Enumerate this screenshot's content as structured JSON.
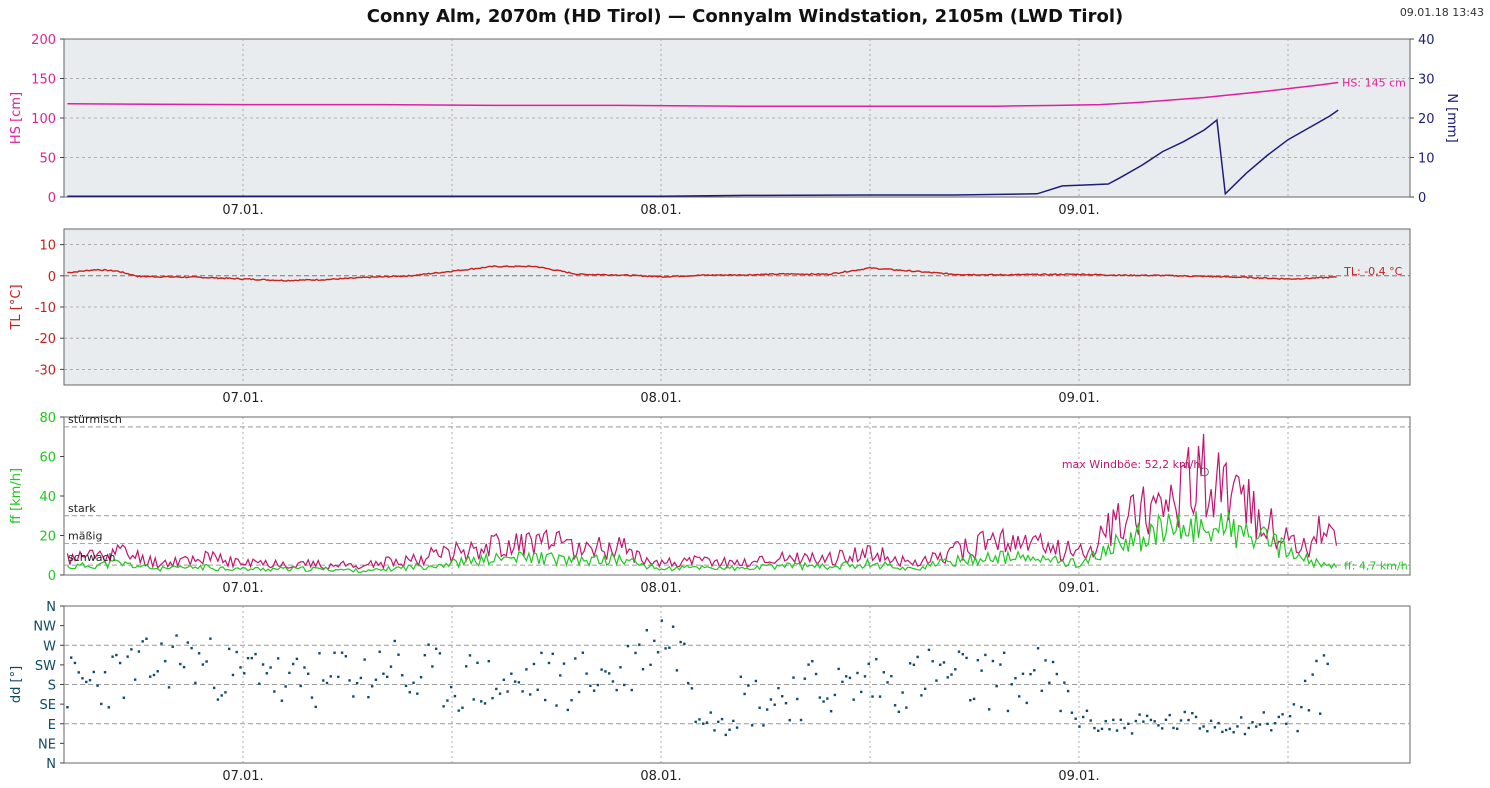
{
  "header": {
    "title": "Conny Alm, 2070m (HD Tirol) — Connyalm Windstation, 2105m (LWD Tirol)",
    "timestamp": "09.01.18 13:43"
  },
  "colors": {
    "hs": "#e0209a",
    "n": "#1e1e7a",
    "tl": "#c8201e",
    "ff": "#1ec81e",
    "gust": "#c01670",
    "dd": "#0e4a6a",
    "panel_bg": "#e9ecef",
    "grid": "#9a9a9a"
  },
  "chart_data": [
    {
      "type": "line",
      "name": "snow-depth-precip",
      "x_tick_labels": [
        "07.01.",
        "08.01.",
        "09.01."
      ],
      "ylabel": "HS [cm]",
      "ylim": [
        0,
        200
      ],
      "yticks": [
        0,
        50,
        100,
        150,
        200
      ],
      "ylabel_right": "N [mm]",
      "ylim_right": [
        0,
        40
      ],
      "yticks_right": [
        0,
        10,
        20,
        30,
        40
      ],
      "x_range_days": [
        -0.425,
        2.8
      ],
      "series": [
        {
          "name": "HS",
          "axis": "left",
          "x": [
            -0.42,
            0.0,
            0.3,
            0.6,
            0.9,
            1.2,
            1.5,
            1.65,
            1.8,
            1.95,
            2.05,
            2.15,
            2.3,
            2.45,
            2.58,
            2.62
          ],
          "values": [
            118,
            117,
            117,
            116,
            116,
            115,
            115,
            115,
            115,
            116,
            117,
            120,
            126,
            134,
            142,
            145
          ],
          "label": "HS: 145 cm"
        },
        {
          "name": "N",
          "axis": "right",
          "x": [
            -0.42,
            0.0,
            0.5,
            1.0,
            1.2,
            1.5,
            1.7,
            1.9,
            1.96,
            2.0,
            2.07,
            2.1,
            2.15,
            2.2,
            2.25,
            2.3,
            2.33,
            2.35,
            2.4,
            2.45,
            2.5,
            2.55,
            2.6,
            2.62
          ],
          "values": [
            0.2,
            0.2,
            0.2,
            0.2,
            0.4,
            0.5,
            0.5,
            0.8,
            2.8,
            3.0,
            3.3,
            5.0,
            8.0,
            11.5,
            14.0,
            17.0,
            19.5,
            0.8,
            6.0,
            10.5,
            14.5,
            17.5,
            20.5,
            22.0
          ]
        }
      ]
    },
    {
      "type": "line",
      "name": "air-temperature",
      "x_tick_labels": [
        "07.01.",
        "08.01.",
        "09.01."
      ],
      "ylabel": "TL [°C]",
      "ylim": [
        -35,
        15
      ],
      "yticks": [
        10,
        0,
        -10,
        -20,
        -30
      ],
      "series": [
        {
          "name": "TL",
          "x": [
            -0.42,
            -0.35,
            -0.3,
            -0.25,
            -0.1,
            0.0,
            0.1,
            0.2,
            0.3,
            0.4,
            0.5,
            0.6,
            0.7,
            0.8,
            0.9,
            0.95,
            1.0,
            1.1,
            1.2,
            1.3,
            1.4,
            1.5,
            1.6,
            1.7,
            1.8,
            1.9,
            2.0,
            2.1,
            2.2,
            2.3,
            2.4,
            2.5,
            2.55,
            2.62
          ],
          "values": [
            1.0,
            2.0,
            1.5,
            -0.2,
            -0.5,
            -1.0,
            -1.5,
            -1.2,
            -0.5,
            0.0,
            1.5,
            3.0,
            3.0,
            0.5,
            0.3,
            0.0,
            -0.3,
            0.2,
            0.3,
            0.6,
            0.5,
            2.5,
            1.5,
            0.5,
            0.3,
            0.4,
            0.5,
            0.2,
            0.1,
            -0.2,
            -0.5,
            -1.0,
            -0.8,
            -0.4
          ],
          "label": "TL: -0,4 °C"
        }
      ]
    },
    {
      "type": "line",
      "name": "wind-speed",
      "x_tick_labels": [
        "07.01.",
        "08.01.",
        "09.01."
      ],
      "ylabel": "ff [km/h]",
      "ylim": [
        0,
        80
      ],
      "yticks": [
        0,
        20,
        40,
        60,
        80
      ],
      "threshold_labels": [
        {
          "label": "stürmisch",
          "value": 75
        },
        {
          "label": "stark",
          "value": 30
        },
        {
          "label": "mäßig",
          "value": 16
        },
        {
          "label": "schwach",
          "value": 5
        }
      ],
      "series": [
        {
          "name": "ff",
          "x": [
            -0.42,
            -0.3,
            -0.2,
            -0.1,
            0.0,
            0.1,
            0.2,
            0.3,
            0.4,
            0.5,
            0.6,
            0.7,
            0.8,
            0.9,
            1.0,
            1.1,
            1.2,
            1.3,
            1.4,
            1.5,
            1.6,
            1.7,
            1.8,
            1.9,
            2.0,
            2.05,
            2.1,
            2.15,
            2.2,
            2.25,
            2.3,
            2.35,
            2.4,
            2.45,
            2.5,
            2.55,
            2.6,
            2.62
          ],
          "values": [
            4,
            6,
            3,
            4,
            3,
            3,
            3,
            2,
            4,
            6,
            8,
            9,
            7,
            8,
            3,
            4,
            3,
            5,
            4,
            6,
            3,
            7,
            9,
            8,
            6,
            10,
            16,
            20,
            22,
            23,
            25,
            24,
            20,
            17,
            12,
            7,
            4,
            4.7
          ],
          "label": "ff: 4,7 km/h"
        },
        {
          "name": "Windböe",
          "x": [
            -0.42,
            -0.3,
            -0.2,
            -0.1,
            0.0,
            0.1,
            0.2,
            0.3,
            0.4,
            0.5,
            0.6,
            0.7,
            0.8,
            0.9,
            1.0,
            1.1,
            1.2,
            1.3,
            1.4,
            1.5,
            1.6,
            1.7,
            1.8,
            1.9,
            2.0,
            2.05,
            2.1,
            2.15,
            2.2,
            2.25,
            2.3,
            2.35,
            2.4,
            2.45,
            2.5,
            2.55,
            2.6,
            2.62
          ],
          "values": [
            8,
            12,
            6,
            9,
            6,
            6,
            5,
            5,
            8,
            12,
            15,
            17,
            14,
            14,
            6,
            7,
            6,
            9,
            8,
            12,
            5,
            12,
            17,
            15,
            12,
            18,
            28,
            34,
            40,
            44,
            52.2,
            40,
            36,
            28,
            20,
            14,
            30,
            10
          ],
          "label": "max Windböe: 52,2 km/h"
        }
      ]
    },
    {
      "type": "scatter",
      "name": "wind-direction",
      "x_tick_labels": [
        "07.01.",
        "08.01.",
        "09.01."
      ],
      "ylabel": "dd [°]",
      "ylim": [
        0,
        360
      ],
      "yticks": [
        "N",
        "NW",
        "W",
        "SW",
        "S",
        "SE",
        "E",
        "NE",
        "N"
      ],
      "series": [
        {
          "name": "dd",
          "x": [
            -0.42,
            -0.35,
            -0.3,
            -0.25,
            -0.2,
            -0.15,
            -0.1,
            -0.05,
            0.0,
            0.05,
            0.1,
            0.15,
            0.2,
            0.25,
            0.3,
            0.35,
            0.4,
            0.45,
            0.5,
            0.55,
            0.6,
            0.65,
            0.7,
            0.75,
            0.8,
            0.85,
            0.9,
            0.95,
            1.0,
            1.05,
            1.1,
            1.15,
            1.2,
            1.25,
            1.3,
            1.35,
            1.4,
            1.45,
            1.5,
            1.55,
            1.6,
            1.65,
            1.7,
            1.75,
            1.8,
            1.85,
            1.9,
            1.95,
            2.0,
            2.05,
            2.1,
            2.15,
            2.2,
            2.25,
            2.3,
            2.35,
            2.4,
            2.45,
            2.5,
            2.55,
            2.6
          ],
          "values": [
            180,
            185,
            200,
            215,
            225,
            250,
            230,
            210,
            195,
            240,
            160,
            200,
            175,
            215,
            190,
            245,
            180,
            205,
            175,
            190,
            180,
            170,
            200,
            185,
            190,
            205,
            195,
            250,
            300,
            260,
            110,
            130,
            150,
            140,
            160,
            170,
            175,
            165,
            195,
            180,
            190,
            205,
            200,
            185,
            195,
            180,
            200,
            170,
            100,
            90,
            85,
            95,
            90,
            95,
            90,
            92,
            90,
            95,
            100,
            160,
            190
          ]
        }
      ]
    }
  ]
}
